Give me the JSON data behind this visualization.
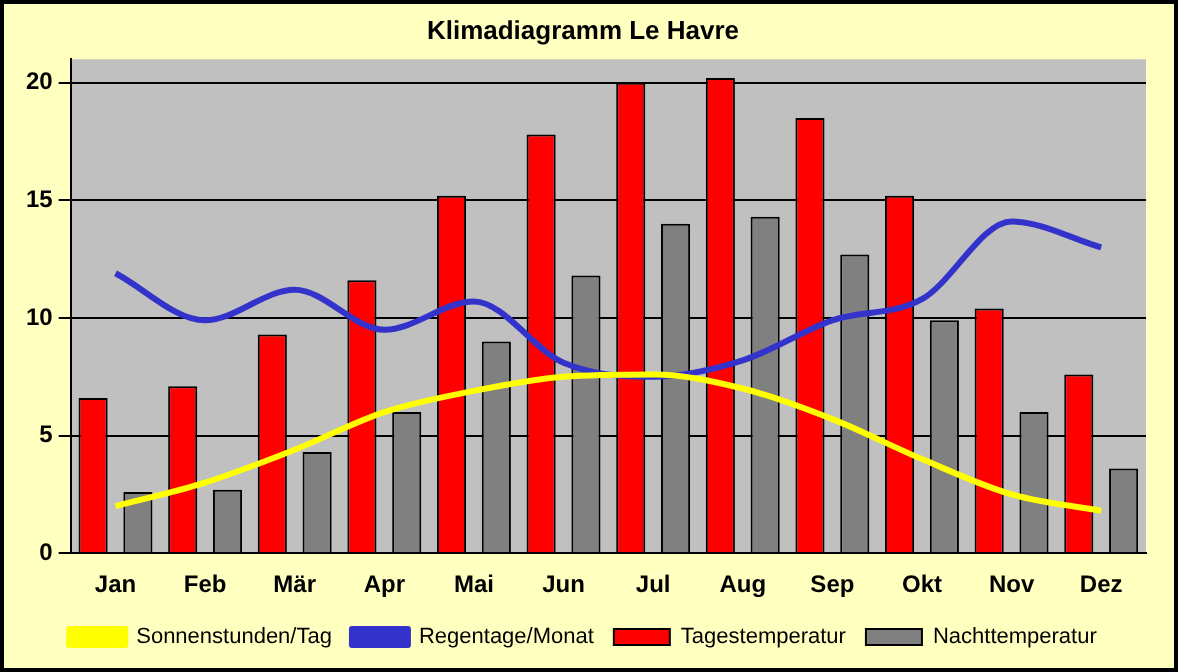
{
  "chart_data": {
    "type": "bar",
    "title": "Klimadiagramm Le Havre",
    "categories": [
      "Jan",
      "Feb",
      "Mär",
      "Apr",
      "Mai",
      "Jun",
      "Jul",
      "Aug",
      "Sep",
      "Okt",
      "Nov",
      "Dez"
    ],
    "series": [
      {
        "name": "Tagestemperatur",
        "color": "#ff0000",
        "values": [
          6.6,
          7.1,
          9.3,
          11.6,
          15.2,
          17.8,
          20,
          20.2,
          18.5,
          15.2,
          10.4,
          7.6
        ]
      },
      {
        "name": "Nachttemperatur",
        "color": "#808080",
        "values": [
          2.6,
          2.7,
          4.3,
          6.0,
          9.0,
          11.8,
          14.0,
          14.3,
          12.7,
          9.9,
          6.0,
          3.6
        ]
      },
      {
        "name": "Sonnenstunden/Tag",
        "type": "line",
        "color": "#ffff00",
        "values": [
          2.0,
          3.0,
          4.4,
          6.0,
          6.9,
          7.5,
          7.6,
          7.0,
          5.7,
          4.0,
          2.5,
          1.8
        ]
      },
      {
        "name": "Regentage/Monat",
        "type": "line",
        "color": "#3333cc",
        "values": [
          11.9,
          9.9,
          11.2,
          9.5,
          10.7,
          8.1,
          7.5,
          8.2,
          9.9,
          10.8,
          14.1,
          13.0
        ]
      }
    ],
    "ylim": [
      0,
      21
    ],
    "yticks": [
      0,
      5,
      10,
      15,
      20
    ],
    "grid": "y",
    "legend": "bottom",
    "marker": "none"
  }
}
